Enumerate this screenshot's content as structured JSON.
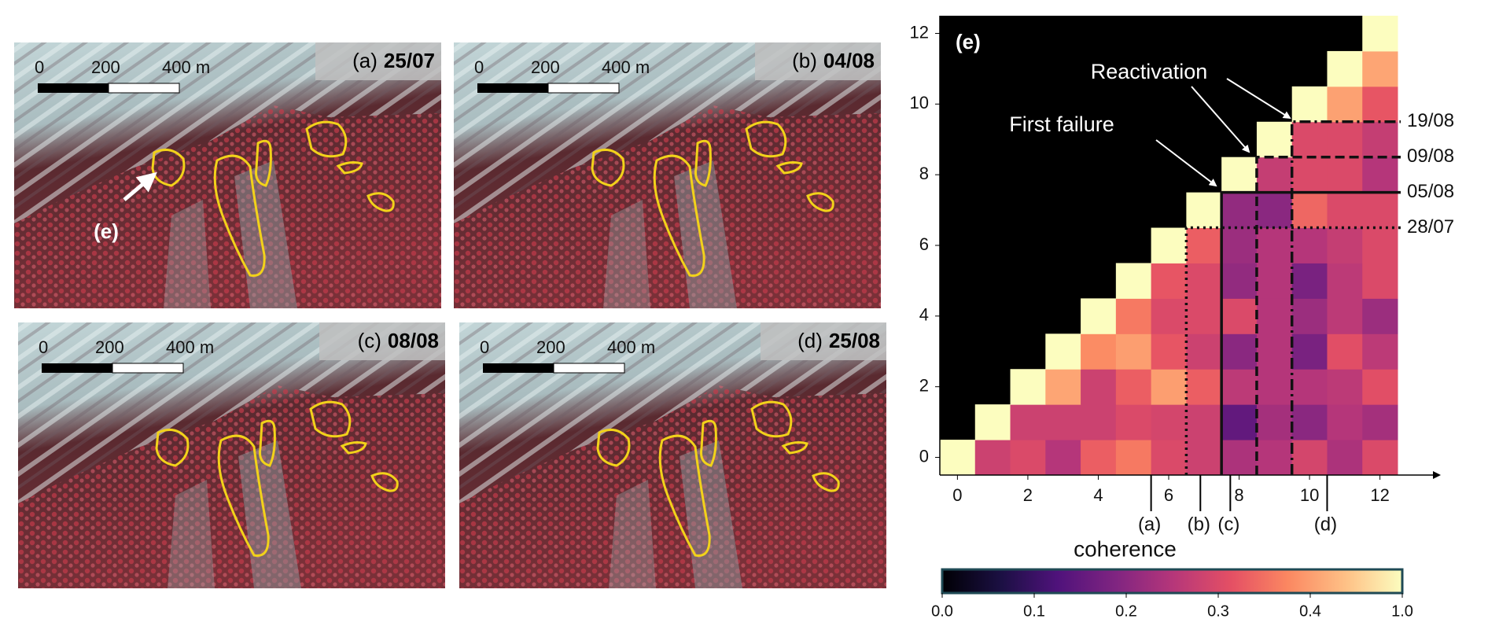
{
  "panels": [
    {
      "letter": "(a)",
      "date": "25/07",
      "scale": [
        "0",
        "200",
        "400 m"
      ],
      "annotation": "(e)"
    },
    {
      "letter": "(b)",
      "date": "04/08",
      "scale": [
        "0",
        "200",
        "400 m"
      ]
    },
    {
      "letter": "(c)",
      "date": "08/08",
      "scale": [
        "0",
        "200",
        "400 m"
      ]
    },
    {
      "letter": "(d)",
      "date": "25/08",
      "scale": [
        "0",
        "200",
        "400 m"
      ]
    }
  ],
  "chart_data": {
    "type": "heatmap",
    "title": "(e)",
    "x": [
      0,
      1,
      2,
      3,
      4,
      5,
      6,
      7,
      8,
      9,
      10,
      11,
      12
    ],
    "y": [
      0,
      1,
      2,
      3,
      4,
      5,
      6,
      7,
      8,
      9,
      10,
      11,
      12
    ],
    "z": [
      [
        1.0,
        0.28,
        0.3,
        0.25,
        0.33,
        0.36,
        0.3,
        0.28,
        0.24,
        0.25,
        0.29,
        0.24,
        0.3
      ],
      [
        null,
        1.0,
        0.28,
        0.28,
        0.28,
        0.3,
        0.29,
        0.28,
        0.15,
        0.23,
        0.2,
        0.25,
        0.23
      ],
      [
        null,
        null,
        1.0,
        0.45,
        0.28,
        0.33,
        0.4,
        0.33,
        0.26,
        0.25,
        0.25,
        0.26,
        0.31
      ],
      [
        null,
        null,
        null,
        1.0,
        0.38,
        0.4,
        0.32,
        0.28,
        0.2,
        0.25,
        0.18,
        0.31,
        0.26
      ],
      [
        null,
        null,
        null,
        null,
        1.0,
        0.36,
        0.3,
        0.3,
        0.3,
        0.25,
        0.22,
        0.26,
        0.22
      ],
      [
        null,
        null,
        null,
        null,
        null,
        1.0,
        0.32,
        0.3,
        0.21,
        0.25,
        0.18,
        0.26,
        0.3
      ],
      [
        null,
        null,
        null,
        null,
        null,
        null,
        1.0,
        0.33,
        0.22,
        0.25,
        0.25,
        0.27,
        0.3
      ],
      [
        null,
        null,
        null,
        null,
        null,
        null,
        null,
        1.0,
        0.21,
        0.2,
        0.34,
        0.3,
        0.3
      ],
      [
        null,
        null,
        null,
        null,
        null,
        null,
        null,
        null,
        1.0,
        0.27,
        0.3,
        0.3,
        0.25
      ],
      [
        null,
        null,
        null,
        null,
        null,
        null,
        null,
        null,
        null,
        1.0,
        0.3,
        0.3,
        0.27
      ],
      [
        null,
        null,
        null,
        null,
        null,
        null,
        null,
        null,
        null,
        null,
        1.0,
        0.42,
        0.32
      ],
      [
        null,
        null,
        null,
        null,
        null,
        null,
        null,
        null,
        null,
        null,
        null,
        1.0,
        0.45
      ],
      [
        null,
        null,
        null,
        null,
        null,
        null,
        null,
        null,
        null,
        null,
        null,
        null,
        1.0
      ]
    ],
    "xlim": [
      -0.5,
      12.5
    ],
    "ylim": [
      -0.5,
      12.5
    ],
    "xticks": [
      0,
      2,
      4,
      6,
      8,
      10,
      12
    ],
    "yticks": [
      0,
      2,
      4,
      6,
      8,
      10,
      12
    ],
    "colorbar": {
      "label": "coherence",
      "ticks": [
        {
          "value": 0,
          "label": "0.0"
        },
        0.1,
        0.2,
        0.3,
        0.4,
        {
          "value": 1,
          "label": "1.0"
        }
      ]
    },
    "annotations": [
      {
        "text": "First failure"
      },
      {
        "text": "Reactivation"
      }
    ],
    "reference_lines": [
      {
        "value": 9.5,
        "label": "19/08",
        "style": "dashdot"
      },
      {
        "value": 8.5,
        "label": "09/08",
        "style": "dashed"
      },
      {
        "value": 7.5,
        "label": "05/08",
        "style": "solid"
      },
      {
        "value": 6.5,
        "label": "28/07",
        "style": "dotted"
      }
    ],
    "markers": [
      {
        "x": 5.5,
        "label": "(a)"
      },
      {
        "x": 6.9,
        "label": "(b)"
      },
      {
        "x": 7.75,
        "label": "(c)"
      },
      {
        "x": 10.5,
        "label": "(d)"
      }
    ]
  }
}
